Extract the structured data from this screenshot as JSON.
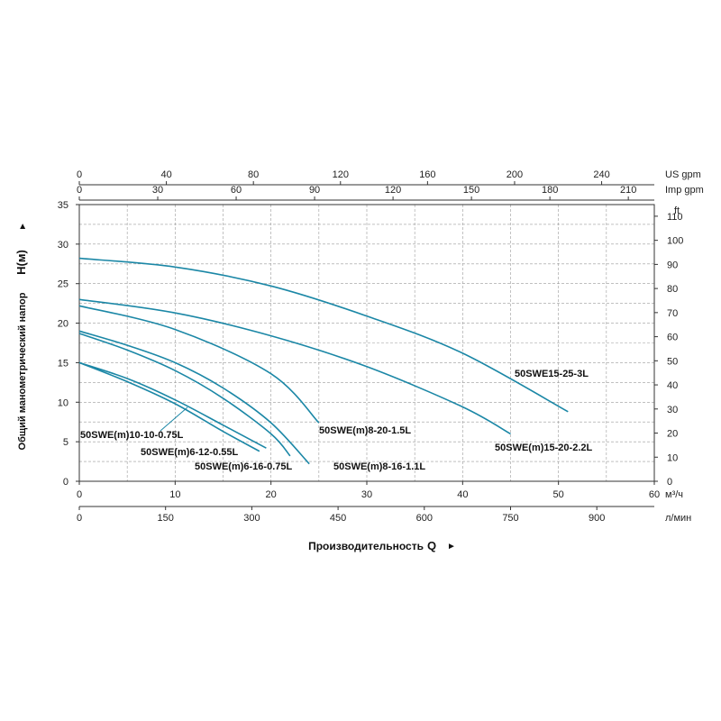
{
  "chart_data": {
    "type": "line",
    "x_unit": "м³/ч",
    "x_ticks": [
      0,
      10,
      20,
      30,
      40,
      50,
      60
    ],
    "xlim": [
      0,
      60
    ],
    "y_ticks": [
      0,
      5,
      10,
      15,
      20,
      25,
      30,
      35
    ],
    "ylim": [
      0,
      35
    ],
    "ylabel": "Общий манометрический напор",
    "ylabel_symbol": "H(м)",
    "xlabel": "Производительность",
    "xlabel_symbol": "Q",
    "arrow_right": "►",
    "arrow_up": "►",
    "secondary_axes": [
      {
        "position": "top-1",
        "unit": "US gpm",
        "ticks": [
          0,
          40,
          80,
          120,
          160,
          200,
          240
        ],
        "data_per_unit": 0.2271
      },
      {
        "position": "top-2",
        "unit": "Imp gpm",
        "ticks": [
          0,
          30,
          60,
          90,
          120,
          150,
          180,
          210
        ],
        "data_per_unit": 0.2728
      },
      {
        "position": "bottom-2",
        "unit": "л/мин",
        "ticks": [
          0,
          150,
          300,
          450,
          600,
          750,
          900
        ],
        "data_per_unit": 0.06
      },
      {
        "position": "right",
        "unit": "ft",
        "ticks": [
          0,
          10,
          20,
          30,
          40,
          50,
          60,
          70,
          80,
          90,
          100,
          110
        ],
        "data_per_unit": 0.3048
      }
    ],
    "grid": true,
    "series": [
      {
        "name": "50SWE15-25-3L",
        "x": [
          0,
          10,
          20,
          30,
          40,
          51
        ],
        "y": [
          28.2,
          27.1,
          24.7,
          20.9,
          16.2,
          8.8
        ]
      },
      {
        "name": "50SWE(m)15-20-2.2L",
        "x": [
          0,
          10,
          20,
          30,
          40,
          45
        ],
        "y": [
          23.0,
          21.3,
          18.4,
          14.5,
          9.4,
          6.0
        ]
      },
      {
        "name": "50SWE(m)8-20-1.5L",
        "x": [
          0,
          10,
          20,
          25
        ],
        "y": [
          22.2,
          19.2,
          13.6,
          7.4
        ]
      },
      {
        "name": "50SWE(m)8-16-1.1L",
        "x": [
          0,
          5,
          10,
          15,
          20,
          24
        ],
        "y": [
          19.0,
          17.2,
          15.0,
          11.8,
          7.4,
          2.2
        ]
      },
      {
        "name": "50SWE(m)6-16-0.75L",
        "x": [
          0,
          5,
          10,
          15,
          20,
          22
        ],
        "y": [
          18.7,
          16.6,
          14.0,
          10.5,
          6.0,
          3.2
        ]
      },
      {
        "name": "50SWE(m)6-12-0.55L",
        "x": [
          0,
          5,
          10,
          15,
          19.5
        ],
        "y": [
          15.0,
          13.0,
          10.3,
          7.1,
          4.2
        ]
      },
      {
        "name": "50SWE(m)10-10-0.75L",
        "x": [
          0,
          5,
          10,
          15,
          18.8
        ],
        "y": [
          15.0,
          12.6,
          9.8,
          6.3,
          3.8
        ]
      }
    ]
  }
}
